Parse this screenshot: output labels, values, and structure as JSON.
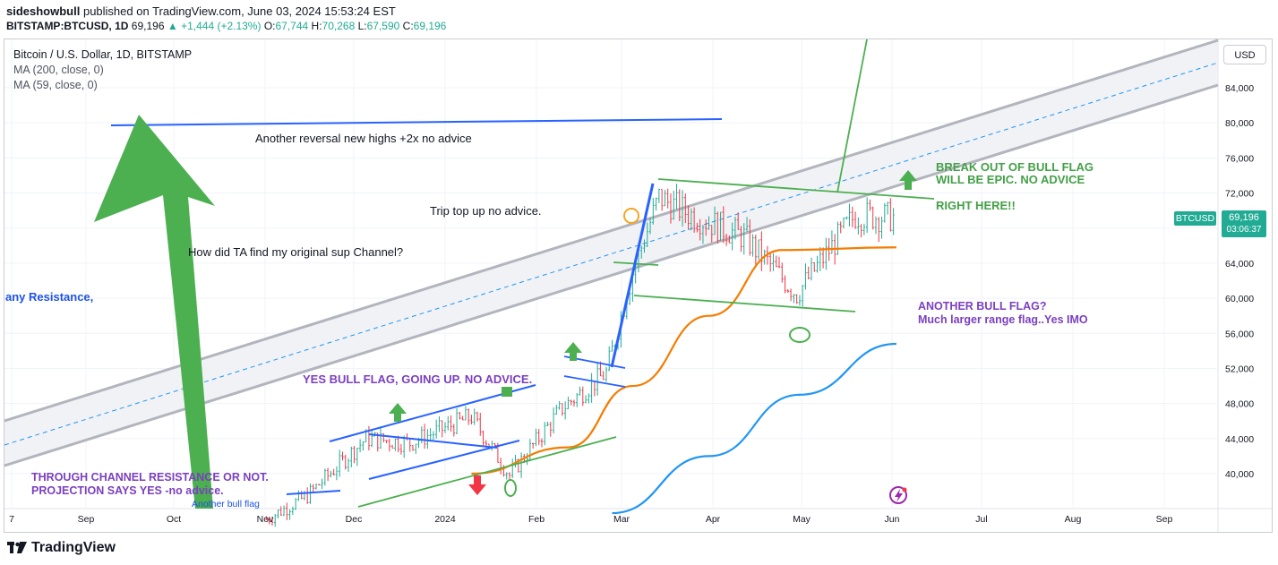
{
  "header": {
    "publisher": "sideshowbull",
    "published_text": "published on TradingView.com, June 03, 2024 15:53:24 EST",
    "symbol_line": {
      "symbol": "BITSTAMP:BTCUSD, 1D",
      "last": "69,196",
      "change": "+1,444 (+2.13%)",
      "open_label": "O:",
      "open": "67,744",
      "high_label": "H:",
      "high": "70,268",
      "low_label": "L:",
      "low": "67,590",
      "close_label": "C:",
      "close": "69,196"
    }
  },
  "legend": {
    "title": "Bitcoin / U.S. Dollar, 1D, BITSTAMP",
    "ma200": "MA (200, close, 0)",
    "ma59": "MA (59, close, 0)"
  },
  "price_scale": {
    "currency_button": "USD",
    "symbol_tag": "BTCUSD",
    "last_price": "69,196",
    "countdown": "03:06:37"
  },
  "footer": {
    "brand": "TradingView"
  },
  "colors": {
    "up": "#22ab94",
    "down": "#f23645",
    "ma200": "#2196f3",
    "ma59": "#f57c00",
    "channel": "#b2b5be",
    "annot_blue": "#2962ff",
    "annot_green": "#4caf50",
    "annot_purple": "#7b1fa2"
  },
  "chart_data": {
    "type": "candlestick",
    "title": "Bitcoin / U.S. Dollar, 1D, BITSTAMP",
    "x_ticks": [
      "7",
      "Sep",
      "Oct",
      "Nov",
      "Dec",
      "2024",
      "Feb",
      "Mar",
      "Apr",
      "May",
      "Jun",
      "Jul",
      "Aug",
      "Sep"
    ],
    "y_ticks": [
      40000,
      44000,
      48000,
      52000,
      56000,
      60000,
      64000,
      68000,
      72000,
      76000,
      80000,
      84000
    ],
    "y_tick_labels": [
      "40,000",
      "44,000",
      "48,000",
      "52,000",
      "56,000",
      "60,000",
      "64,000",
      "68,000",
      "72,000",
      "76,000",
      "80,000",
      "84,000"
    ],
    "ylim": [
      36000,
      89000
    ],
    "last_price": 69196,
    "price_path": [
      {
        "date": "2023-11-01",
        "close": 34800
      },
      {
        "date": "2023-11-15",
        "close": 37500
      },
      {
        "date": "2023-12-05",
        "close": 44000
      },
      {
        "date": "2023-12-20",
        "close": 43500
      },
      {
        "date": "2024-01-10",
        "close": 46500
      },
      {
        "date": "2024-01-23",
        "close": 39800
      },
      {
        "date": "2024-02-10",
        "close": 47500
      },
      {
        "date": "2024-02-25",
        "close": 51500
      },
      {
        "date": "2024-03-05",
        "close": 63000
      },
      {
        "date": "2024-03-14",
        "close": 71500
      },
      {
        "date": "2024-03-25",
        "close": 69500
      },
      {
        "date": "2024-04-12",
        "close": 67000
      },
      {
        "date": "2024-04-30",
        "close": 60500
      },
      {
        "date": "2024-05-20",
        "close": 69500
      },
      {
        "date": "2024-06-03",
        "close": 69196
      }
    ],
    "ma200_path": [
      {
        "date": "2024-02-27",
        "value": 35500
      },
      {
        "date": "2024-03-31",
        "value": 42000
      },
      {
        "date": "2024-05-01",
        "value": 49000
      },
      {
        "date": "2024-06-03",
        "value": 54800
      }
    ],
    "ma59_path": [
      {
        "date": "2024-01-10",
        "value": 40000
      },
      {
        "date": "2024-02-12",
        "value": 43000
      },
      {
        "date": "2024-03-05",
        "value": 50000
      },
      {
        "date": "2024-03-31",
        "value": 58000
      },
      {
        "date": "2024-04-25",
        "value": 65500
      },
      {
        "date": "2024-06-03",
        "value": 65800
      }
    ]
  },
  "annotations": {
    "reversal": "Another reversal  new highs +2x no advice",
    "trip_top": "Trip top up  no advice.",
    "how_did_ta": "How did TA find my original sup Channel?",
    "resistance": "any Resistance,",
    "bull_flag_up": "YES BULL FLAG,  GOING UP. NO ADVICE.",
    "break_out_1": "BREAK OUT OF BULL FLAG",
    "break_out_2": "WILL BE EPIC. NO ADVICE",
    "right_here": "RIGHT HERE!!",
    "another_flag_1": "ANOTHER BULL FLAG?",
    "another_flag_2": "Much larger range flag..Yes IMO",
    "through_channel_1": "THROUGH CHANNEL RESISTANCE OR NOT.",
    "through_channel_2": "PROJECTION SAYS YES -no advice.",
    "another_bull_flag_small": "Another bull flag"
  }
}
